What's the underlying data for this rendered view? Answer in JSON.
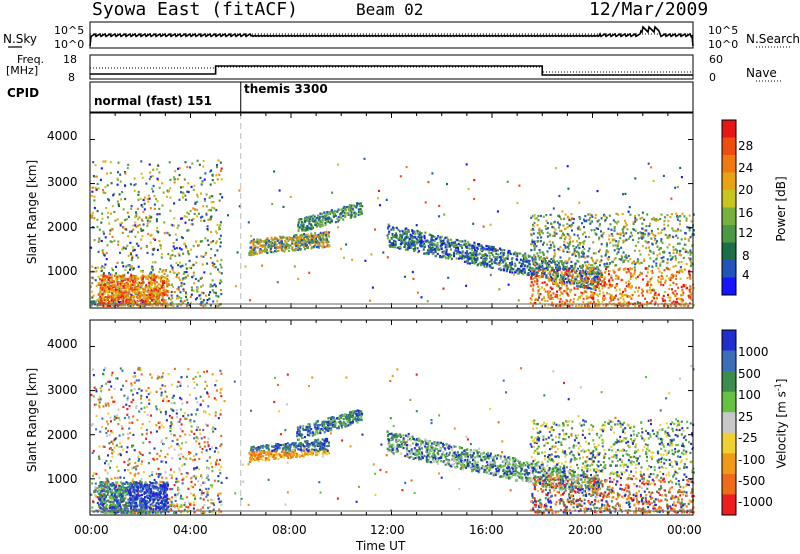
{
  "header": {
    "station": "Syowa East (fitACF)",
    "beam": "Beam 02",
    "date": "12/Mar/2009"
  },
  "panels": {
    "nsky": {
      "left_label": "N.Sky",
      "right_label": "N.Search",
      "left_ticks": [
        "10^5",
        "10^0"
      ],
      "right_ticks": [
        "10^5",
        "10^0"
      ]
    },
    "freq": {
      "left_label_1": "Freq.",
      "left_label_2": "[MHz]",
      "left_ticks": [
        "18",
        "8"
      ],
      "right_label": "Nave",
      "right_ticks": [
        "60",
        "0"
      ]
    },
    "cpid": {
      "label": "CPID",
      "modes": [
        {
          "name": "normal (fast) 151"
        },
        {
          "name": "themis 3300"
        }
      ]
    }
  },
  "chart_data": [
    {
      "type": "heatmap",
      "title": "",
      "ylabel": "Slant Range [km]",
      "xlabel": "",
      "ylim": [
        180,
        4600
      ],
      "yticks": [
        "1000",
        "2000",
        "3000",
        "4000"
      ],
      "colorbar": {
        "label": "Power [dB]",
        "ticks": [
          "4",
          "8",
          "12",
          "16",
          "20",
          "24",
          "28"
        ],
        "colors": [
          "#1515ff",
          "#2255bb",
          "#1c6e44",
          "#4c9944",
          "#76b13c",
          "#c8c420",
          "#e9a214",
          "#f07a10",
          "#ef4d10",
          "#e81515"
        ]
      }
    },
    {
      "type": "heatmap",
      "title": "",
      "ylabel": "Slant Range [km]",
      "xlabel": "Time UT",
      "ylim": [
        180,
        4600
      ],
      "yticks": [
        "1000",
        "2000",
        "3000",
        "4000"
      ],
      "xticks": [
        "00:00",
        "04:00",
        "08:00",
        "12:00",
        "16:00",
        "20:00",
        "00:00"
      ],
      "colorbar": {
        "label_main": "Velocity",
        "label_unit": "[m s",
        "label_exp": "-1",
        "label_close": "]",
        "ticks": [
          "1000",
          "500",
          "100",
          "25",
          "-25",
          "-100",
          "-500",
          "-1000"
        ],
        "colors": [
          "#1f2ecc",
          "#3a6fb8",
          "#3c8c4c",
          "#66c143",
          "#c8c8c8",
          "#f0d030",
          "#f09a18",
          "#f06b18",
          "#ee1e1e"
        ]
      }
    }
  ]
}
